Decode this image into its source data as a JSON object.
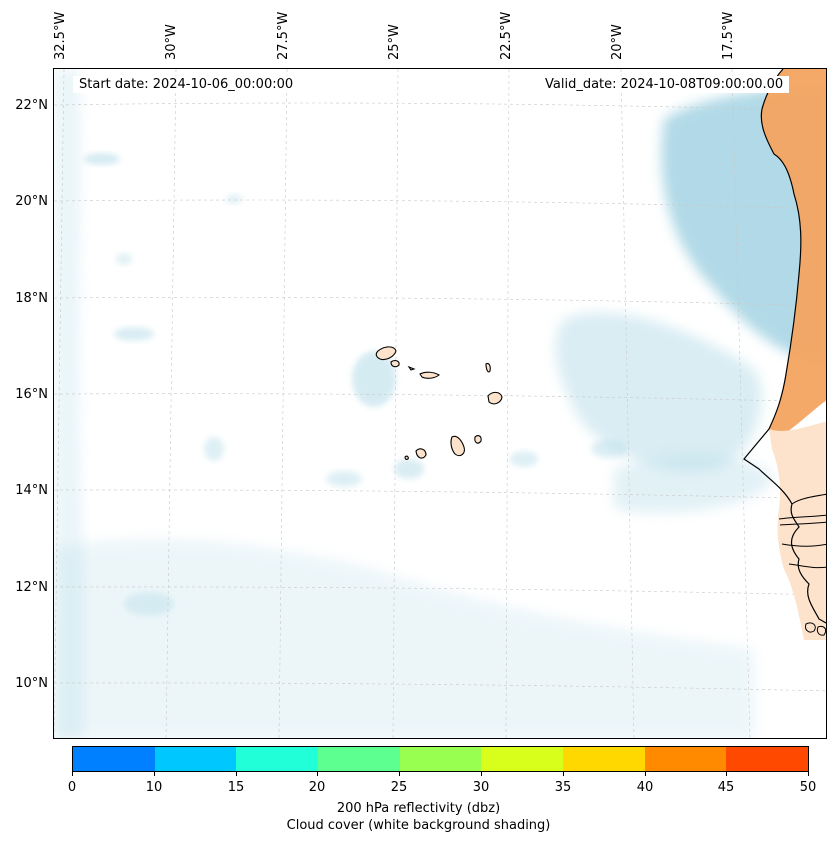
{
  "map": {
    "start_date": "Start date: 2024-10-06_00:00:00",
    "valid_date": "Valid_date: 2024-10-08T09:00:00.00",
    "longitude_labels": [
      "32.5°W",
      "30°W",
      "27.5°W",
      "25°W",
      "22.5°W",
      "20°W",
      "17.5°W"
    ],
    "latitude_labels": [
      "22°N",
      "20°N",
      "18°N",
      "16°N",
      "14°N",
      "12°N",
      "10°N"
    ],
    "land_color": "#f4a460",
    "cloud_color": "#add8e6",
    "coast_color": "#000000"
  },
  "colorbar": {
    "ticks": [
      "0",
      "10",
      "15",
      "20",
      "25",
      "30",
      "35",
      "40",
      "45",
      "50"
    ],
    "colors": [
      "#0080ff",
      "#00c8ff",
      "#20ffd8",
      "#5cff90",
      "#98ff50",
      "#d8ff1c",
      "#ffd800",
      "#ff8a00",
      "#ff4800"
    ],
    "label": "200 hPa reflectivity (dbz)",
    "sublabel": "Cloud cover (white background shading)"
  }
}
